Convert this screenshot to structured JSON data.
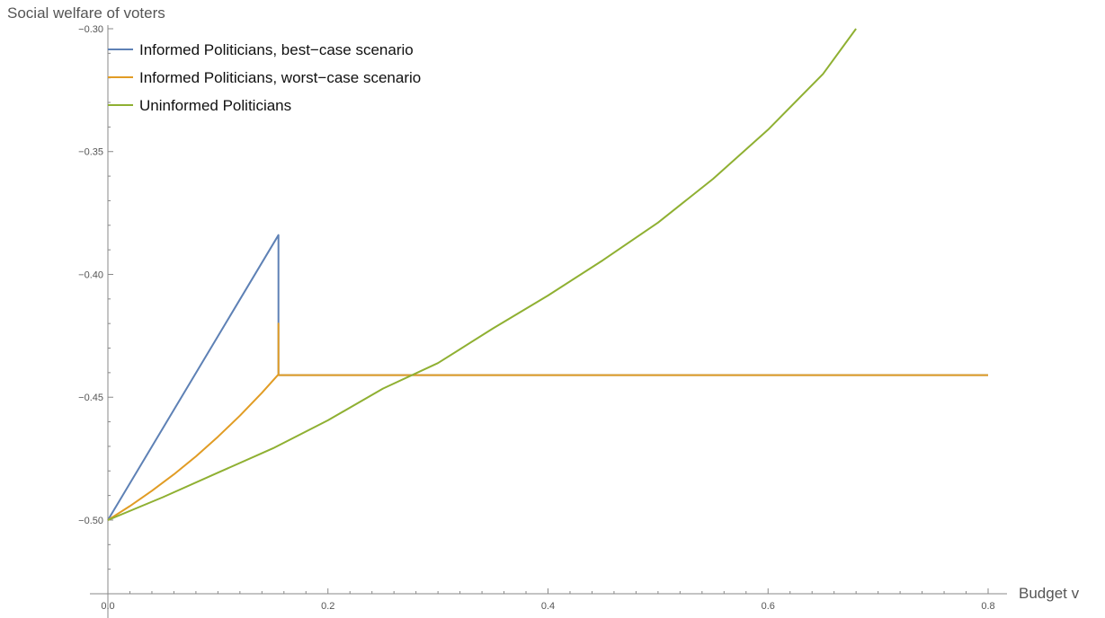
{
  "chart_data": {
    "type": "line",
    "title": "",
    "xlabel": "Budget v",
    "ylabel": "Social welfare of voters",
    "xlim": [
      0,
      0.8
    ],
    "ylim": [
      -0.53,
      -0.3
    ],
    "x_ticks": [
      "0.0",
      "0.2",
      "0.4",
      "0.6",
      "0.8"
    ],
    "y_ticks": [
      "-0.30",
      "-0.35",
      "-0.40",
      "-0.45",
      "-0.50"
    ],
    "x_tick_values": [
      0.0,
      0.2,
      0.4,
      0.6,
      0.8
    ],
    "y_tick_values": [
      -0.3,
      -0.35,
      -0.4,
      -0.45,
      -0.5
    ],
    "grid": false,
    "legend_position": "top-left",
    "series": [
      {
        "name": "Informed Politicians, best−case scenario",
        "color": "#5e81b5",
        "points": [
          [
            0.0,
            -0.5
          ],
          [
            0.155,
            -0.384
          ],
          [
            0.155,
            -0.441
          ],
          [
            0.8,
            -0.441
          ]
        ]
      },
      {
        "name": "Informed Politicians, worst−case scenario",
        "color": "#e19c24",
        "points": [
          [
            0.0,
            -0.5
          ],
          [
            0.02,
            -0.4943
          ],
          [
            0.04,
            -0.4881
          ],
          [
            0.06,
            -0.4814
          ],
          [
            0.08,
            -0.4741
          ],
          [
            0.1,
            -0.4661
          ],
          [
            0.12,
            -0.4575
          ],
          [
            0.14,
            -0.4482
          ],
          [
            0.155,
            -0.4407
          ],
          [
            0.155,
            -0.42
          ],
          [
            0.155,
            -0.441
          ],
          [
            0.8,
            -0.441
          ]
        ]
      },
      {
        "name": "Uninformed Politicians",
        "color": "#8fb032",
        "points": [
          [
            0.0,
            -0.5
          ],
          [
            0.05,
            -0.4907
          ],
          [
            0.1,
            -0.4807
          ],
          [
            0.15,
            -0.4708
          ],
          [
            0.2,
            -0.4594
          ],
          [
            0.25,
            -0.4465
          ],
          [
            0.3,
            -0.4361
          ],
          [
            0.35,
            -0.422
          ],
          [
            0.4,
            -0.4086
          ],
          [
            0.45,
            -0.3942
          ],
          [
            0.5,
            -0.3789
          ],
          [
            0.55,
            -0.3611
          ],
          [
            0.6,
            -0.3411
          ],
          [
            0.65,
            -0.3184
          ],
          [
            0.68,
            -0.3
          ]
        ]
      }
    ]
  }
}
